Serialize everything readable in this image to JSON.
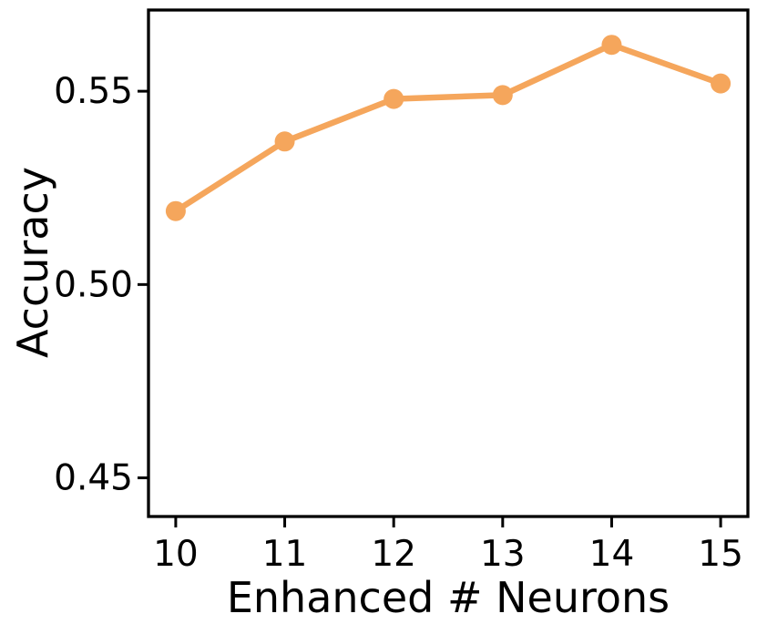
{
  "figure": {
    "background_color": "#ffffff"
  },
  "chart_data": {
    "type": "line",
    "title": "",
    "xlabel": "Enhanced # Neurons",
    "ylabel": "Accuracy",
    "x": [
      10,
      11,
      12,
      13,
      14,
      15
    ],
    "series": [
      {
        "name": "accuracy",
        "values": [
          0.519,
          0.537,
          0.548,
          0.549,
          0.562,
          0.552
        ],
        "color": "#F5A65C",
        "marker": "circle"
      }
    ],
    "xlim": [
      9.75,
      15.25
    ],
    "ylim": [
      0.44,
      0.571
    ],
    "xticks": {
      "values": [
        10,
        11,
        12,
        13,
        14,
        15
      ],
      "labels": [
        "10",
        "11",
        "12",
        "13",
        "14",
        "15"
      ]
    },
    "yticks": {
      "values": [
        0.45,
        0.5,
        0.55
      ],
      "labels": [
        "0.45",
        "0.50",
        "0.55"
      ]
    },
    "grid": false,
    "legend": false,
    "axis_color": "#000000",
    "text_color": "#000000"
  }
}
